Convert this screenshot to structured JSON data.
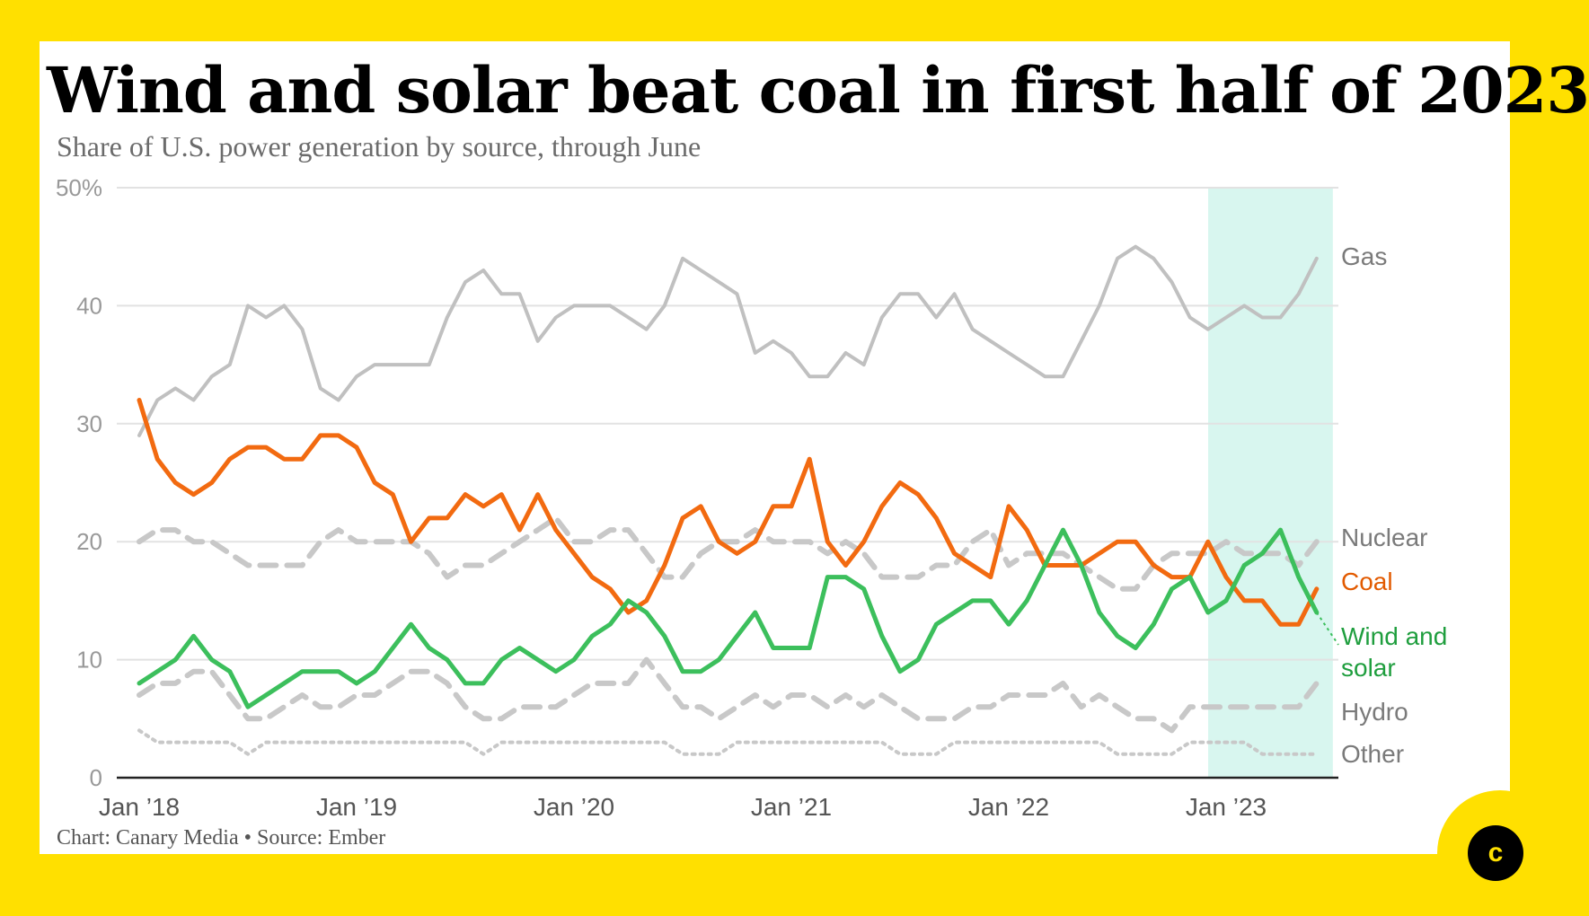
{
  "title": "Wind and solar beat coal in first half of 2023",
  "subtitle": "Share of U.S. power generation by source, through June",
  "footer": "Chart: Canary Media • Source: Ember",
  "logo_letter": "c",
  "colors": {
    "background": "#ffe000",
    "gas": "#c0c0c0",
    "coal": "#f26a10",
    "wind_solar": "#3cbf5c",
    "nuclear": "#c8c8c8",
    "hydro": "#c8c8c8",
    "other": "#c8c8c8",
    "highlight": "#d8f6ef"
  },
  "chart_data": {
    "type": "line",
    "title": "Wind and solar beat coal in first half of 2023",
    "subtitle": "Share of U.S. power generation by source, through June",
    "x_start": "2018-01",
    "x_end": "2023-06",
    "x_tick_labels": [
      "Jan ’18",
      "Jan ’19",
      "Jan ’20",
      "Jan ’21",
      "Jan ’22",
      "Jan ’23"
    ],
    "y_tick_labels": [
      "0",
      "10",
      "20",
      "30",
      "40",
      "50%"
    ],
    "ylim": [
      0,
      50
    ],
    "grid": true,
    "highlight_range": [
      "2023-01",
      "2023-06"
    ],
    "series": [
      {
        "name": "Gas",
        "style": "solid",
        "color": "#c0c0c0",
        "values": [
          29,
          32,
          33,
          32,
          34,
          35,
          40,
          39,
          40,
          38,
          33,
          32,
          34,
          35,
          35,
          35,
          35,
          39,
          42,
          43,
          41,
          41,
          37,
          39,
          40,
          40,
          40,
          39,
          38,
          40,
          44,
          43,
          42,
          41,
          36,
          37,
          36,
          34,
          34,
          36,
          35,
          39,
          41,
          41,
          39,
          41,
          38,
          37,
          36,
          35,
          34,
          34,
          37,
          40,
          44,
          45,
          44,
          42,
          39,
          38,
          39,
          40,
          39,
          39,
          41,
          44
        ]
      },
      {
        "name": "Coal",
        "style": "solid",
        "color": "#f26a10",
        "values": [
          32,
          27,
          25,
          24,
          25,
          27,
          28,
          28,
          27,
          27,
          29,
          29,
          28,
          25,
          24,
          20,
          22,
          22,
          24,
          23,
          24,
          21,
          24,
          21,
          19,
          17,
          16,
          14,
          15,
          18,
          22,
          23,
          20,
          19,
          20,
          23,
          23,
          27,
          20,
          18,
          20,
          23,
          25,
          24,
          22,
          19,
          18,
          17,
          23,
          21,
          18,
          18,
          18,
          19,
          20,
          20,
          18,
          17,
          17,
          20,
          17,
          15,
          15,
          13,
          13,
          16
        ]
      },
      {
        "name": "Wind and solar",
        "style": "solid",
        "color": "#3cbf5c",
        "values": [
          8,
          9,
          10,
          12,
          10,
          9,
          6,
          7,
          8,
          9,
          9,
          9,
          8,
          9,
          11,
          13,
          11,
          10,
          8,
          8,
          10,
          11,
          10,
          9,
          10,
          12,
          13,
          15,
          14,
          12,
          9,
          9,
          10,
          12,
          14,
          11,
          11,
          11,
          17,
          17,
          16,
          12,
          9,
          10,
          13,
          14,
          15,
          15,
          13,
          15,
          18,
          21,
          18,
          14,
          12,
          11,
          13,
          16,
          17,
          14,
          15,
          18,
          19,
          21,
          17,
          14
        ]
      },
      {
        "name": "Nuclear",
        "style": "dashed",
        "color": "#c8c8c8",
        "values": [
          20,
          21,
          21,
          20,
          20,
          19,
          18,
          18,
          18,
          18,
          20,
          21,
          20,
          20,
          20,
          20,
          19,
          17,
          18,
          18,
          19,
          20,
          21,
          22,
          20,
          20,
          21,
          21,
          19,
          17,
          17,
          19,
          20,
          20,
          21,
          20,
          20,
          20,
          19,
          20,
          19,
          17,
          17,
          17,
          18,
          18,
          20,
          21,
          18,
          19,
          19,
          19,
          18,
          17,
          16,
          16,
          18,
          19,
          19,
          19,
          20,
          19,
          19,
          19,
          18,
          20
        ]
      },
      {
        "name": "Hydro",
        "style": "dashed",
        "color": "#c8c8c8",
        "values": [
          7,
          8,
          8,
          9,
          9,
          7,
          5,
          5,
          6,
          7,
          6,
          6,
          7,
          7,
          8,
          9,
          9,
          8,
          6,
          5,
          5,
          6,
          6,
          6,
          7,
          8,
          8,
          8,
          10,
          8,
          6,
          6,
          5,
          6,
          7,
          6,
          7,
          7,
          6,
          7,
          6,
          7,
          6,
          5,
          5,
          5,
          6,
          6,
          7,
          7,
          7,
          8,
          6,
          7,
          6,
          5,
          5,
          4,
          6,
          6,
          6,
          6,
          6,
          6,
          6,
          8
        ]
      },
      {
        "name": "Other",
        "style": "dotted",
        "color": "#c8c8c8",
        "values": [
          4,
          3,
          3,
          3,
          3,
          3,
          2,
          3,
          3,
          3,
          3,
          3,
          3,
          3,
          3,
          3,
          3,
          3,
          3,
          2,
          3,
          3,
          3,
          3,
          3,
          3,
          3,
          3,
          3,
          3,
          2,
          2,
          2,
          3,
          3,
          3,
          3,
          3,
          3,
          3,
          3,
          3,
          2,
          2,
          2,
          3,
          3,
          3,
          3,
          3,
          3,
          3,
          3,
          3,
          2,
          2,
          2,
          2,
          3,
          3,
          3,
          3,
          2,
          2,
          2,
          2
        ]
      }
    ],
    "legend_placement": "right end labels",
    "end_labels": [
      "Gas",
      "Nuclear",
      "Coal",
      "Wind and solar",
      "Hydro",
      "Other"
    ]
  }
}
